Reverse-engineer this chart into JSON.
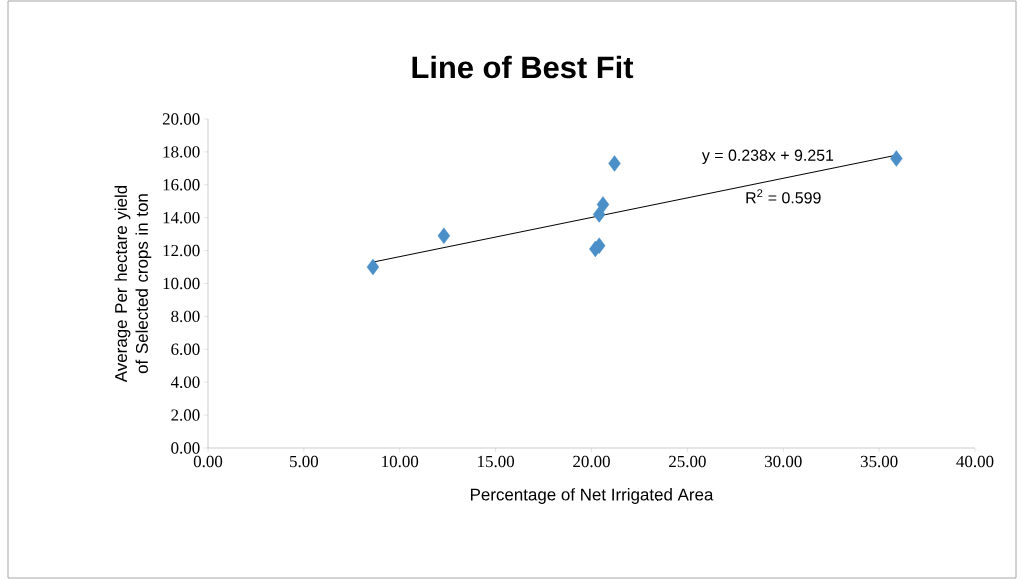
{
  "chart_data": {
    "type": "scatter",
    "title": "Line of Best Fit",
    "xlabel": "Percentage of Net Irrigated Area",
    "ylabel": "Average Per hectare yield of Selected crops in ton",
    "xlim": [
      0,
      40
    ],
    "ylim": [
      0,
      20
    ],
    "xticks": [
      {
        "value": 0,
        "label": "0.00"
      },
      {
        "value": 5,
        "label": "5.00"
      },
      {
        "value": 10,
        "label": "10.00"
      },
      {
        "value": 15,
        "label": "15.00"
      },
      {
        "value": 20,
        "label": "20.00"
      },
      {
        "value": 25,
        "label": "25.00"
      },
      {
        "value": 30,
        "label": "30.00"
      },
      {
        "value": 35,
        "label": "35.00"
      },
      {
        "value": 40,
        "label": "40.00"
      }
    ],
    "yticks": [
      {
        "value": 0,
        "label": "0.00"
      },
      {
        "value": 2,
        "label": "2.00"
      },
      {
        "value": 4,
        "label": "4.00"
      },
      {
        "value": 6,
        "label": "6.00"
      },
      {
        "value": 8,
        "label": "8.00"
      },
      {
        "value": 10,
        "label": "10.00"
      },
      {
        "value": 12,
        "label": "12.00"
      },
      {
        "value": 14,
        "label": "14.00"
      },
      {
        "value": 16,
        "label": "16.00"
      },
      {
        "value": 18,
        "label": "18.00"
      },
      {
        "value": 20,
        "label": "20.00"
      }
    ],
    "series": [
      {
        "type": "scatter",
        "color": "#4a8fc7",
        "marker": "diamond",
        "x": [
          8.6,
          12.3,
          20.2,
          20.4,
          20.4,
          20.6,
          21.2,
          35.9
        ],
        "values": [
          11.0,
          12.9,
          12.1,
          12.3,
          14.2,
          14.8,
          17.3,
          17.6
        ]
      },
      {
        "type": "line",
        "color": "#000000",
        "marker": "none",
        "x": [
          8.6,
          35.9
        ],
        "values": [
          11.3,
          17.8
        ]
      }
    ],
    "annotations": [
      "y = 0.238x + 9.251",
      "R$^{2}$ = 0.599"
    ]
  }
}
